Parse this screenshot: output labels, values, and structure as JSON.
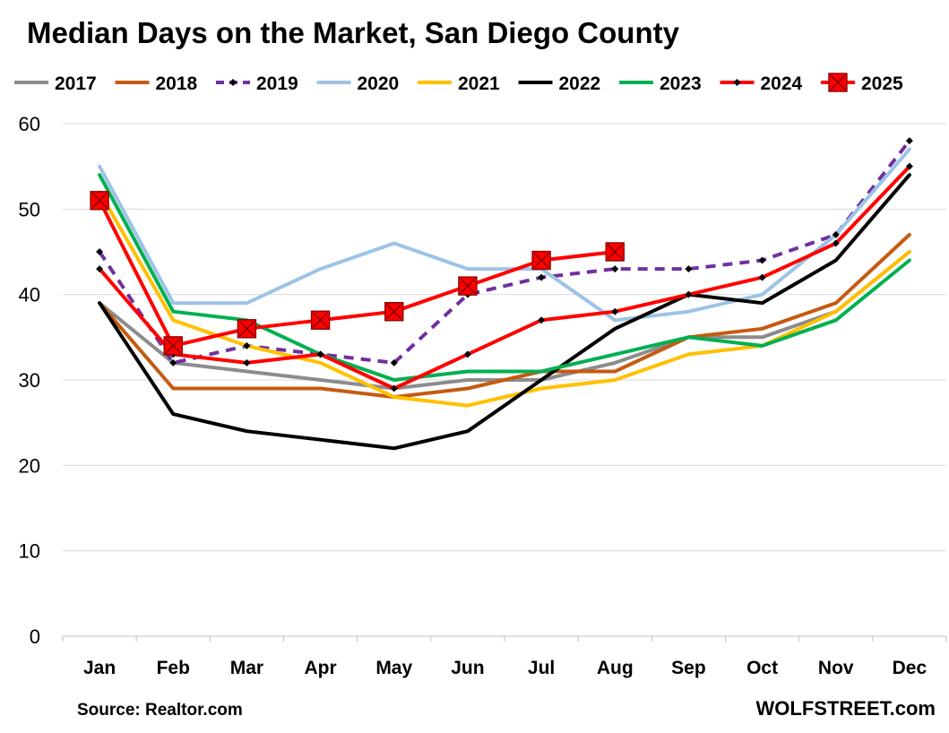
{
  "chart_data": {
    "type": "line",
    "title": "Median Days on the Market, San Diego County",
    "xlabel": "",
    "ylabel": "",
    "categories": [
      "Jan",
      "Feb",
      "Mar",
      "Apr",
      "May",
      "Jun",
      "Jul",
      "Aug",
      "Sep",
      "Oct",
      "Nov",
      "Dec"
    ],
    "yticks": [
      0,
      10,
      20,
      30,
      40,
      50,
      60
    ],
    "ylim": [
      0,
      60
    ],
    "grid": true,
    "legend_position": "top",
    "source": "Source: Realtor.com",
    "brand": "WOLFSTREET.com",
    "series": [
      {
        "name": "2017",
        "color": "#8c8c8c",
        "style": "solid",
        "marker": "none",
        "values": [
          39,
          32,
          31,
          30,
          29,
          30,
          30,
          32,
          35,
          35,
          38,
          45
        ]
      },
      {
        "name": "2018",
        "color": "#c55a11",
        "style": "solid",
        "marker": "none",
        "values": [
          39,
          29,
          29,
          29,
          28,
          29,
          31,
          31,
          35,
          36,
          39,
          47
        ]
      },
      {
        "name": "2019",
        "color": "#7030a0",
        "style": "dashed",
        "marker": "diamond",
        "values": [
          45,
          32,
          34,
          33,
          32,
          40,
          42,
          43,
          43,
          44,
          47,
          58
        ]
      },
      {
        "name": "2020",
        "color": "#9dc3e6",
        "style": "solid",
        "marker": "none",
        "values": [
          55,
          39,
          39,
          43,
          46,
          43,
          43,
          37,
          38,
          40,
          47,
          57
        ]
      },
      {
        "name": "2021",
        "color": "#ffc000",
        "style": "solid",
        "marker": "none",
        "values": [
          52,
          37,
          34,
          32,
          28,
          27,
          29,
          30,
          33,
          34,
          38,
          45
        ]
      },
      {
        "name": "2022",
        "color": "#000000",
        "style": "solid",
        "marker": "none",
        "values": [
          39,
          26,
          24,
          23,
          22,
          24,
          30,
          36,
          40,
          39,
          44,
          54
        ]
      },
      {
        "name": "2023",
        "color": "#00b050",
        "style": "solid",
        "marker": "none",
        "values": [
          54,
          38,
          37,
          33,
          30,
          31,
          31,
          33,
          35,
          34,
          37,
          44
        ]
      },
      {
        "name": "2024",
        "color": "#ff0000",
        "style": "solid",
        "marker": "diamond",
        "values": [
          43,
          33,
          32,
          33,
          29,
          33,
          37,
          38,
          40,
          42,
          46,
          55
        ]
      },
      {
        "name": "2025",
        "color": "#ff0000",
        "style": "solid",
        "marker": "square",
        "values": [
          51,
          34,
          36,
          37,
          38,
          41,
          44,
          45,
          null,
          null,
          null,
          null
        ]
      }
    ]
  }
}
